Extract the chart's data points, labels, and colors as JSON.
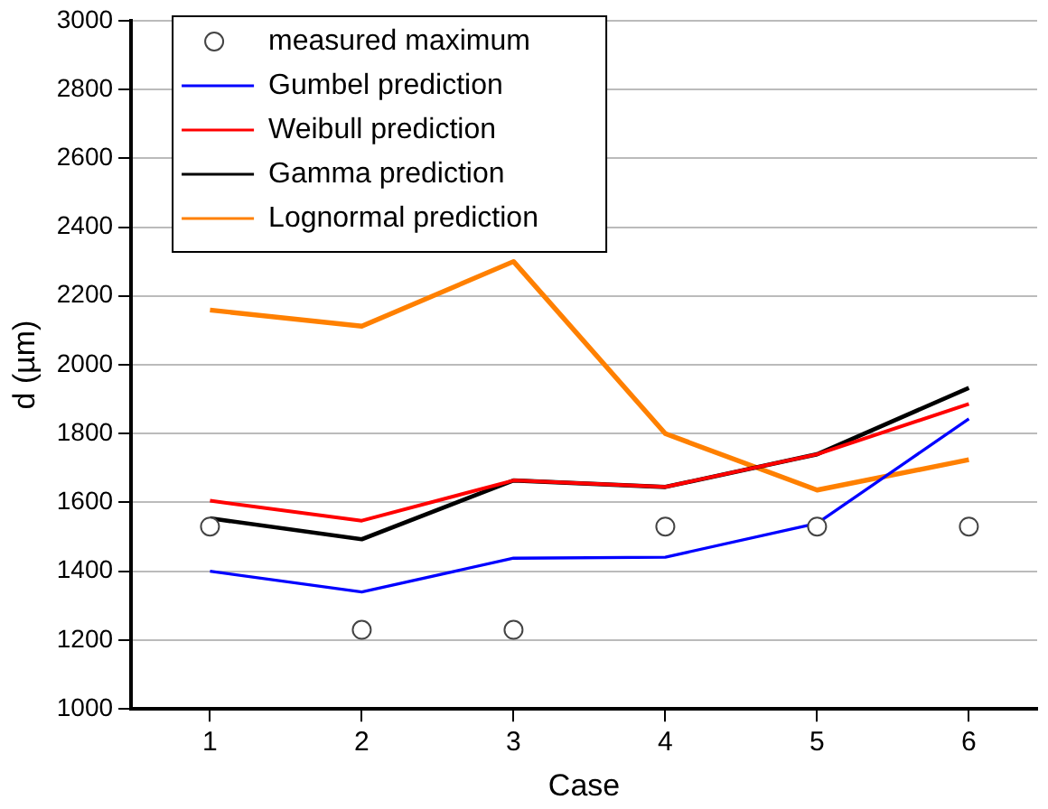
{
  "chart_data": {
    "type": "line",
    "xlabel": "Case",
    "ylabel": "d (µm)",
    "x": [
      1,
      2,
      3,
      4,
      5,
      6
    ],
    "xlim": [
      0.48,
      6.45
    ],
    "xticks": [
      1,
      2,
      3,
      4,
      5,
      6
    ],
    "ylim": [
      1000,
      3000
    ],
    "yticks": [
      1000,
      1200,
      1400,
      1600,
      1800,
      2000,
      2200,
      2400,
      2600,
      2800,
      3000
    ],
    "grid": "y",
    "legend": "top left",
    "line_style": "solid",
    "series": [
      {
        "name": "measured maximum",
        "type": "scatter",
        "marker": "circle",
        "color": "#444444",
        "values": [
          1530,
          1230,
          1230,
          1530,
          1530,
          1530
        ]
      },
      {
        "name": "Gumbel prediction",
        "color": "#0000ff",
        "marker": "none",
        "values": [
          1400,
          1340,
          1438,
          1441,
          1539,
          1843
        ]
      },
      {
        "name": "Weibull prediction",
        "color": "#ff0000",
        "marker": "none",
        "values": [
          1605,
          1547,
          1664,
          1645,
          1740,
          1886
        ]
      },
      {
        "name": "Gamma prediction",
        "color": "#000000",
        "marker": "none",
        "values": [
          1554,
          1493,
          1664,
          1645,
          1740,
          1933
        ]
      },
      {
        "name": "Lognormal prediction",
        "color": "#ff8000",
        "marker": "none",
        "values": [
          2159,
          2112,
          2300,
          1800,
          1636,
          1724
        ]
      }
    ]
  }
}
